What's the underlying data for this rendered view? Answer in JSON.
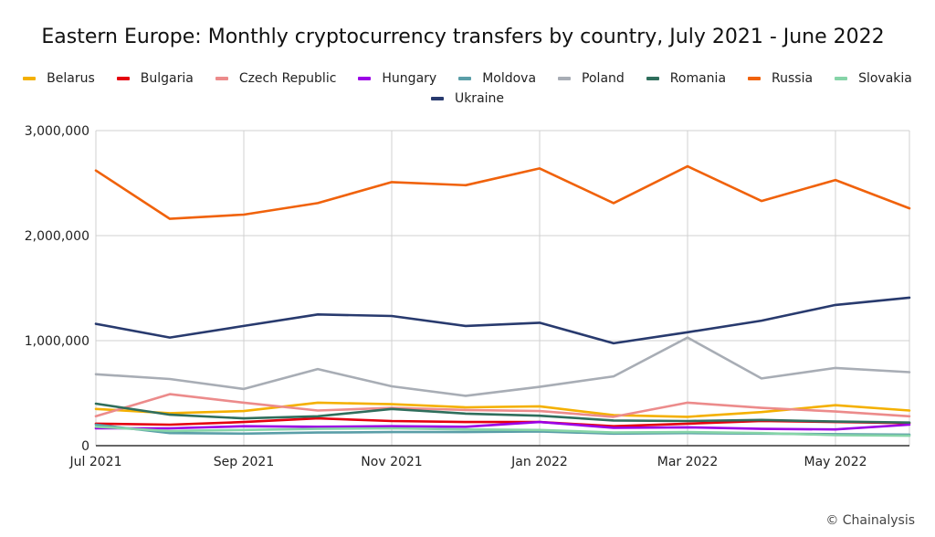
{
  "source": "© Chainalysis",
  "chart_data": {
    "type": "line",
    "title": "Eastern Europe: Monthly cryptocurrency transfers by country, July 2021 - June 2022",
    "xlabel": "",
    "ylabel": "",
    "ylim": [
      0,
      3000000
    ],
    "y_ticks": [
      "0",
      "1,000,000",
      "2,000,000",
      "3,000,000"
    ],
    "y_tick_values": [
      0,
      1000000,
      2000000,
      3000000
    ],
    "x": [
      "2021-07",
      "2021-08",
      "2021-09",
      "2021-10",
      "2021-11",
      "2021-12",
      "2022-01",
      "2022-02",
      "2022-03",
      "2022-04",
      "2022-05",
      "2022-06"
    ],
    "x_tick_labels": [
      "Jul 2021",
      "",
      "Sep 2021",
      "",
      "Nov 2021",
      "",
      "Jan 2022",
      "",
      "Mar 2022",
      "",
      "May 2022",
      ""
    ],
    "grid": true,
    "legend_position": "top",
    "series": [
      {
        "name": "Belarus",
        "color": "#f4b000",
        "values": [
          350000,
          310000,
          330000,
          410000,
          395000,
          365000,
          375000,
          290000,
          275000,
          320000,
          385000,
          335000
        ]
      },
      {
        "name": "Bulgaria",
        "color": "#e4000f",
        "values": [
          210000,
          200000,
          225000,
          260000,
          235000,
          225000,
          225000,
          185000,
          210000,
          235000,
          225000,
          215000
        ]
      },
      {
        "name": "Czech Republic",
        "color": "#ec8b8b",
        "values": [
          280000,
          490000,
          410000,
          335000,
          360000,
          340000,
          330000,
          275000,
          410000,
          360000,
          325000,
          280000
        ]
      },
      {
        "name": "Hungary",
        "color": "#9b00e6",
        "values": [
          165000,
          165000,
          185000,
          180000,
          185000,
          180000,
          225000,
          170000,
          175000,
          160000,
          155000,
          200000
        ]
      },
      {
        "name": "Moldova",
        "color": "#5a9ea8",
        "values": [
          200000,
          120000,
          115000,
          125000,
          130000,
          130000,
          135000,
          115000,
          120000,
          115000,
          110000,
          105000
        ]
      },
      {
        "name": "Poland",
        "color": "#a8adb5",
        "values": [
          680000,
          635000,
          540000,
          730000,
          565000,
          475000,
          560000,
          660000,
          1030000,
          640000,
          740000,
          700000
        ]
      },
      {
        "name": "Romania",
        "color": "#2f6e5c",
        "values": [
          400000,
          295000,
          260000,
          280000,
          350000,
          305000,
          285000,
          240000,
          235000,
          245000,
          230000,
          220000
        ]
      },
      {
        "name": "Russia",
        "color": "#f0620b",
        "values": [
          2620000,
          2160000,
          2200000,
          2310000,
          2510000,
          2480000,
          2640000,
          2310000,
          2660000,
          2330000,
          2530000,
          2260000
        ]
      },
      {
        "name": "Slovakia",
        "color": "#86d4a8",
        "values": [
          180000,
          140000,
          150000,
          160000,
          165000,
          155000,
          150000,
          125000,
          130000,
          120000,
          100000,
          95000
        ]
      },
      {
        "name": "Ukraine",
        "color": "#283a6e",
        "values": [
          1160000,
          1030000,
          1140000,
          1250000,
          1235000,
          1140000,
          1170000,
          975000,
          1080000,
          1190000,
          1340000,
          1410000
        ]
      }
    ]
  }
}
